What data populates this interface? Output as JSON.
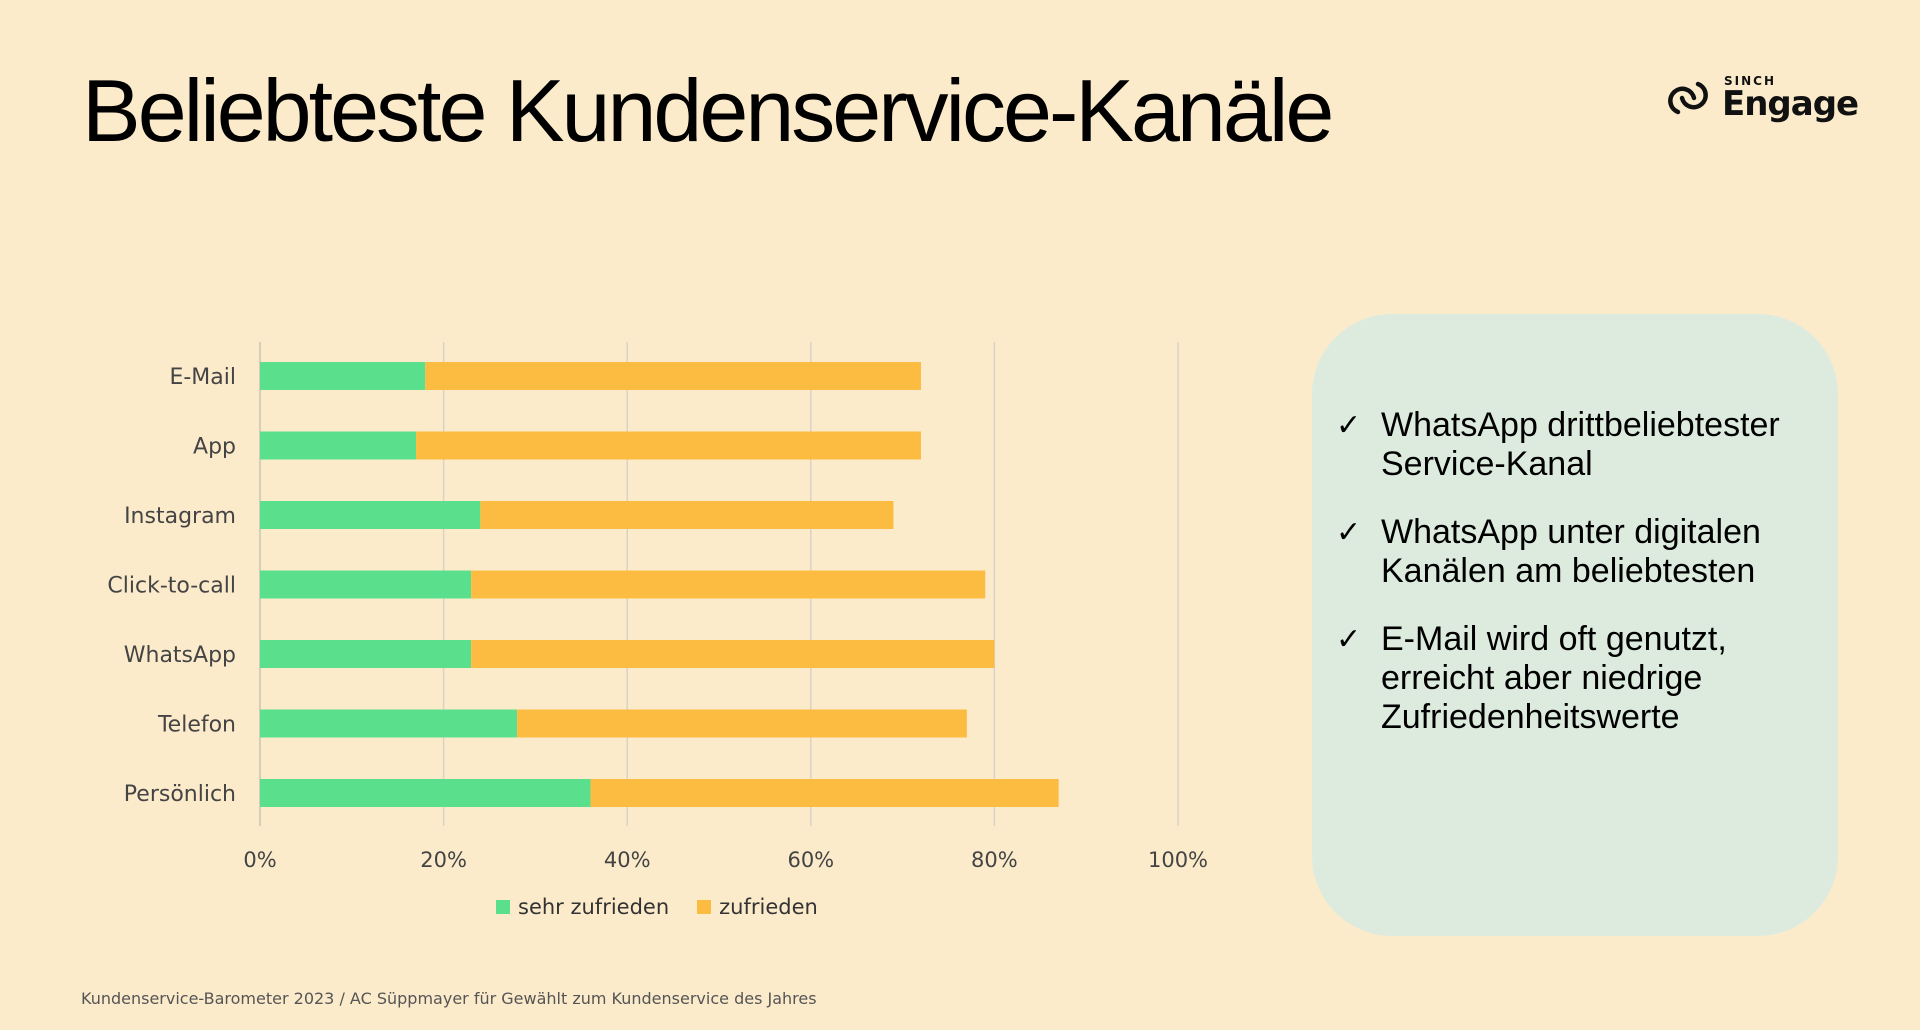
{
  "header": {
    "title": "Beliebteste Kundenservice-Kanäle",
    "logo_top": "SINCH",
    "logo_main": "Engage"
  },
  "chart_data": {
    "type": "bar",
    "orientation": "horizontal",
    "stacked": true,
    "categories": [
      "E-Mail",
      "App",
      "Instagram",
      "Click-to-call",
      "WhatsApp",
      "Telefon",
      "Persönlich"
    ],
    "series": [
      {
        "name": "sehr zufrieden",
        "color": "#5ae08d",
        "values": [
          18,
          17,
          24,
          23,
          23,
          28,
          36
        ]
      },
      {
        "name": "zufrieden",
        "color": "#fcbc42",
        "values": [
          54,
          55,
          45,
          56,
          57,
          49,
          51
        ]
      }
    ],
    "xlim": [
      0,
      100
    ],
    "xticks": [
      "0%",
      "20%",
      "40%",
      "60%",
      "80%",
      "100%"
    ],
    "grid": true,
    "legend_position": "bottom"
  },
  "legend": {
    "item1": "sehr zufrieden",
    "item2": "zufrieden"
  },
  "panel": {
    "bullets": [
      "WhatsApp drittbeliebtester Service-Kanal",
      "WhatsApp unter digitalen Kanälen am beliebtesten",
      "E-Mail wird oft genutzt, erreicht aber niedrige Zufriedenheitswerte"
    ],
    "check_symbol": "✓"
  },
  "footnote": "Kundenservice-Barometer 2023 / AC Süppmayer für Gewählt zum Kundenservice des Jahres"
}
